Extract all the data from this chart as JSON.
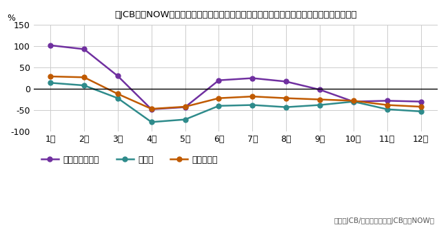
{
  "title": "』JCB消費NOW『サービス：『喫茶店・カフェ』『居酒屋』『ファミレス』指数（前年比）",
  "title2": "『JCB消費NOW』サービス：『喫茶店・カフェ』『居酒屋』『ファミレス』指数（前年比）",
  "months": [
    1,
    2,
    3,
    4,
    5,
    6,
    7,
    8,
    9,
    10,
    11,
    12
  ],
  "month_labels": [
    "1月",
    "2月",
    "3月",
    "4月",
    "5月",
    "6月",
    "7月",
    "8月",
    "9月",
    "10月",
    "11月",
    "12月"
  ],
  "kissaten": [
    102,
    93,
    30,
    -48,
    -43,
    20,
    25,
    17,
    -2,
    -30,
    -28,
    -30
  ],
  "izakaya": [
    14,
    8,
    -22,
    -78,
    -72,
    -40,
    -38,
    -43,
    -38,
    -30,
    -48,
    -53
  ],
  "famires": [
    29,
    27,
    -12,
    -47,
    -42,
    -22,
    -18,
    -22,
    -25,
    -28,
    -38,
    -42
  ],
  "kissaten_color": "#7030a0",
  "izakaya_color": "#2e8b8b",
  "famires_color": "#c05a00",
  "kissaten_label": "喫茶店・カフェ",
  "izakaya_label": "居酒屋",
  "famires_label": "ファミレス",
  "ylabel": "%",
  "ylim": [
    -100,
    150
  ],
  "yticks": [
    -100,
    -50,
    0,
    50,
    100,
    150
  ],
  "source_text": "出所：JCB/ナウキャスト『JCB消費NOW』",
  "bg_color": "#ffffff",
  "grid_color": "#cccccc",
  "marker": "o",
  "markersize": 5,
  "linewidth": 1.8
}
